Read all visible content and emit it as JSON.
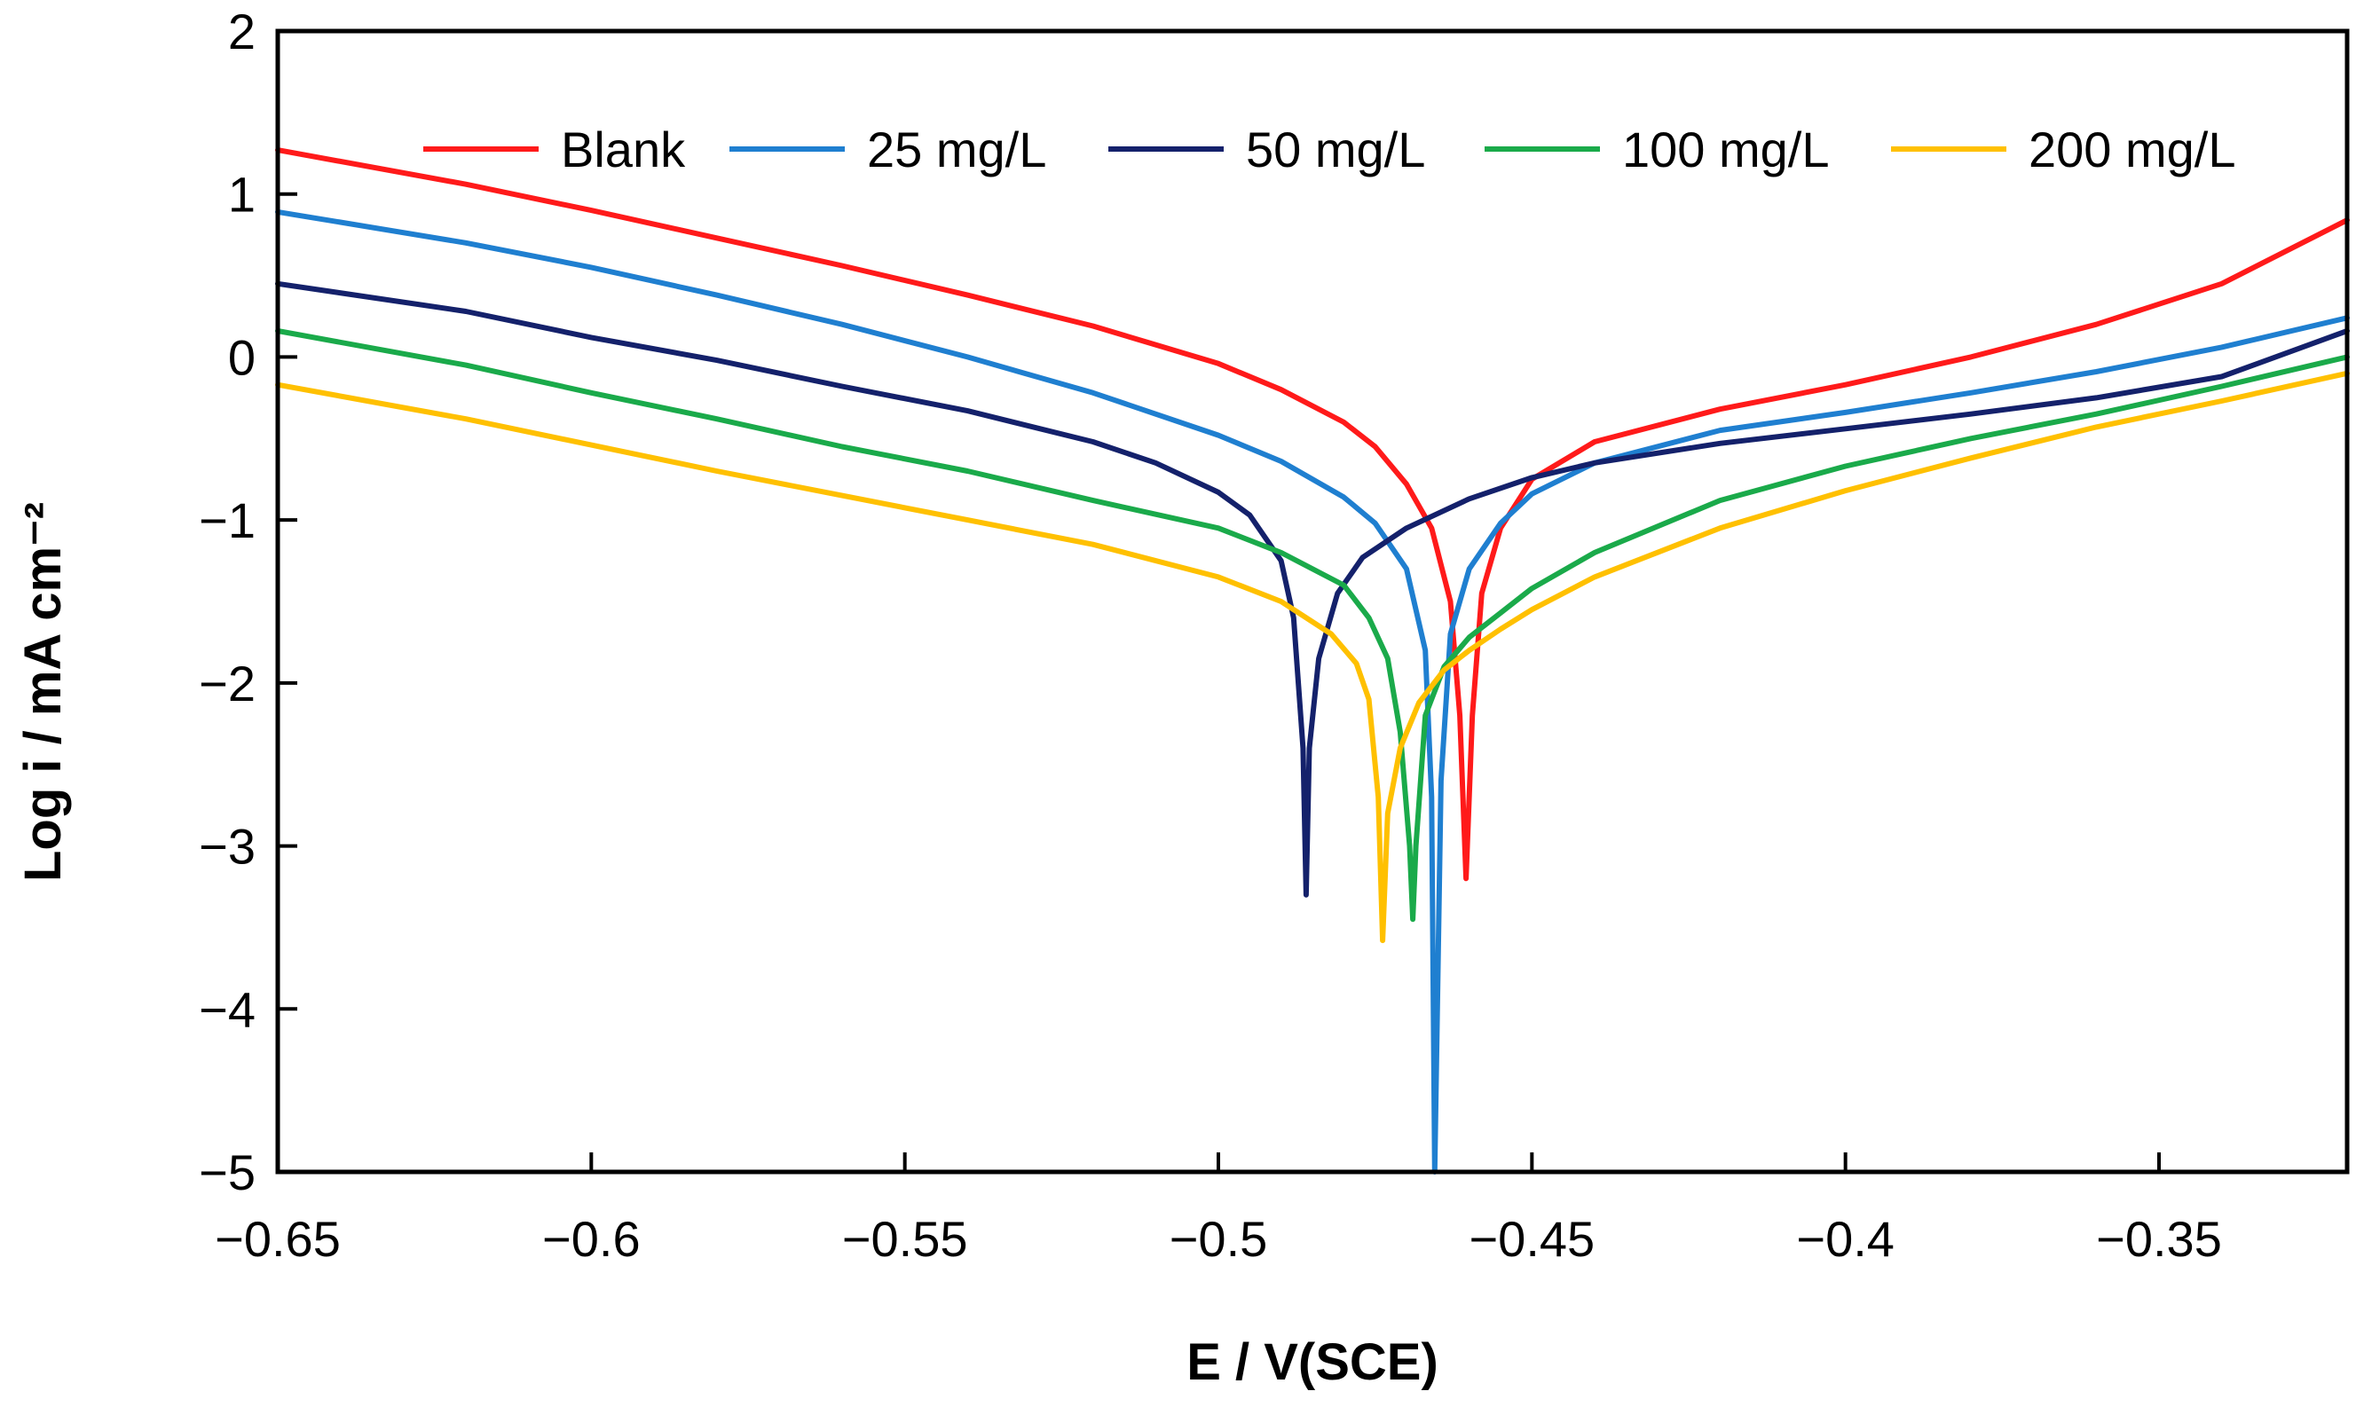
{
  "chart_data": {
    "type": "line",
    "xlabel": "E / V(SCE)",
    "ylabel": "Log i / mA cm⁻²",
    "xlim": [
      -0.65,
      -0.32
    ],
    "ylim": [
      -5,
      2
    ],
    "xticks": [
      -0.65,
      -0.6,
      -0.55,
      -0.5,
      -0.45,
      -0.4,
      -0.35
    ],
    "xtick_labels": [
      "−0.65",
      "−0.6",
      "−0.55",
      "−0.5",
      "−0.45",
      "−0.4",
      "−0.35"
    ],
    "yticks": [
      -5,
      -4,
      -3,
      -2,
      -1,
      0,
      1,
      2
    ],
    "ytick_labels": [
      "−5",
      "−4",
      "−3",
      "−2",
      "−1",
      "0",
      "1",
      "2"
    ],
    "grid": false,
    "legend_position": "top",
    "series": [
      {
        "name": "Blank",
        "color": "#ff1a1a",
        "points": [
          [
            -0.65,
            1.27
          ],
          [
            -0.62,
            1.06
          ],
          [
            -0.6,
            0.9
          ],
          [
            -0.58,
            0.73
          ],
          [
            -0.56,
            0.56
          ],
          [
            -0.54,
            0.38
          ],
          [
            -0.52,
            0.19
          ],
          [
            -0.5,
            -0.04
          ],
          [
            -0.49,
            -0.2
          ],
          [
            -0.48,
            -0.4
          ],
          [
            -0.475,
            -0.55
          ],
          [
            -0.47,
            -0.78
          ],
          [
            -0.466,
            -1.05
          ],
          [
            -0.463,
            -1.5
          ],
          [
            -0.4615,
            -2.2
          ],
          [
            -0.4605,
            -3.2
          ],
          [
            -0.4595,
            -2.2
          ],
          [
            -0.458,
            -1.45
          ],
          [
            -0.455,
            -1.05
          ],
          [
            -0.45,
            -0.75
          ],
          [
            -0.44,
            -0.52
          ],
          [
            -0.42,
            -0.32
          ],
          [
            -0.4,
            -0.17
          ],
          [
            -0.38,
            0.0
          ],
          [
            -0.36,
            0.2
          ],
          [
            -0.34,
            0.45
          ],
          [
            -0.32,
            0.84
          ]
        ]
      },
      {
        "name": "25 mg/L",
        "color": "#1f7fd0",
        "points": [
          [
            -0.65,
            0.89
          ],
          [
            -0.62,
            0.7
          ],
          [
            -0.6,
            0.55
          ],
          [
            -0.58,
            0.38
          ],
          [
            -0.56,
            0.2
          ],
          [
            -0.54,
            0.0
          ],
          [
            -0.52,
            -0.22
          ],
          [
            -0.5,
            -0.48
          ],
          [
            -0.49,
            -0.64
          ],
          [
            -0.48,
            -0.86
          ],
          [
            -0.475,
            -1.02
          ],
          [
            -0.47,
            -1.3
          ],
          [
            -0.467,
            -1.8
          ],
          [
            -0.466,
            -2.7
          ],
          [
            -0.4655,
            -5.0
          ],
          [
            -0.4645,
            -2.6
          ],
          [
            -0.463,
            -1.7
          ],
          [
            -0.46,
            -1.3
          ],
          [
            -0.455,
            -1.02
          ],
          [
            -0.45,
            -0.84
          ],
          [
            -0.44,
            -0.65
          ],
          [
            -0.42,
            -0.45
          ],
          [
            -0.4,
            -0.34
          ],
          [
            -0.38,
            -0.22
          ],
          [
            -0.36,
            -0.09
          ],
          [
            -0.34,
            0.06
          ],
          [
            -0.32,
            0.24
          ]
        ]
      },
      {
        "name": "50 mg/L",
        "color": "#14216b",
        "points": [
          [
            -0.65,
            0.45
          ],
          [
            -0.62,
            0.28
          ],
          [
            -0.6,
            0.12
          ],
          [
            -0.58,
            -0.02
          ],
          [
            -0.56,
            -0.18
          ],
          [
            -0.54,
            -0.33
          ],
          [
            -0.52,
            -0.52
          ],
          [
            -0.51,
            -0.65
          ],
          [
            -0.5,
            -0.83
          ],
          [
            -0.495,
            -0.97
          ],
          [
            -0.49,
            -1.25
          ],
          [
            -0.488,
            -1.6
          ],
          [
            -0.4865,
            -2.4
          ],
          [
            -0.486,
            -3.3
          ],
          [
            -0.4855,
            -2.4
          ],
          [
            -0.484,
            -1.85
          ],
          [
            -0.481,
            -1.45
          ],
          [
            -0.477,
            -1.23
          ],
          [
            -0.47,
            -1.05
          ],
          [
            -0.46,
            -0.87
          ],
          [
            -0.45,
            -0.74
          ],
          [
            -0.44,
            -0.65
          ],
          [
            -0.42,
            -0.53
          ],
          [
            -0.4,
            -0.44
          ],
          [
            -0.38,
            -0.35
          ],
          [
            -0.36,
            -0.25
          ],
          [
            -0.34,
            -0.12
          ],
          [
            -0.32,
            0.16
          ]
        ]
      },
      {
        "name": "100 mg/L",
        "color": "#1aaa4a",
        "points": [
          [
            -0.65,
            0.16
          ],
          [
            -0.62,
            -0.05
          ],
          [
            -0.6,
            -0.22
          ],
          [
            -0.58,
            -0.38
          ],
          [
            -0.56,
            -0.55
          ],
          [
            -0.54,
            -0.7
          ],
          [
            -0.52,
            -0.88
          ],
          [
            -0.5,
            -1.05
          ],
          [
            -0.49,
            -1.2
          ],
          [
            -0.48,
            -1.4
          ],
          [
            -0.476,
            -1.6
          ],
          [
            -0.473,
            -1.85
          ],
          [
            -0.471,
            -2.3
          ],
          [
            -0.4695,
            -3.0
          ],
          [
            -0.469,
            -3.45
          ],
          [
            -0.4685,
            -3.0
          ],
          [
            -0.467,
            -2.2
          ],
          [
            -0.464,
            -1.9
          ],
          [
            -0.46,
            -1.72
          ],
          [
            -0.455,
            -1.57
          ],
          [
            -0.45,
            -1.42
          ],
          [
            -0.44,
            -1.2
          ],
          [
            -0.42,
            -0.88
          ],
          [
            -0.4,
            -0.67
          ],
          [
            -0.38,
            -0.5
          ],
          [
            -0.36,
            -0.35
          ],
          [
            -0.34,
            -0.18
          ],
          [
            -0.32,
            0.0
          ]
        ]
      },
      {
        "name": "200 mg/L",
        "color": "#ffc000",
        "points": [
          [
            -0.65,
            -0.17
          ],
          [
            -0.62,
            -0.38
          ],
          [
            -0.6,
            -0.54
          ],
          [
            -0.58,
            -0.7
          ],
          [
            -0.56,
            -0.85
          ],
          [
            -0.54,
            -1.0
          ],
          [
            -0.52,
            -1.15
          ],
          [
            -0.5,
            -1.35
          ],
          [
            -0.49,
            -1.5
          ],
          [
            -0.482,
            -1.7
          ],
          [
            -0.478,
            -1.88
          ],
          [
            -0.476,
            -2.1
          ],
          [
            -0.4745,
            -2.7
          ],
          [
            -0.4738,
            -3.58
          ],
          [
            -0.473,
            -2.8
          ],
          [
            -0.471,
            -2.4
          ],
          [
            -0.468,
            -2.12
          ],
          [
            -0.464,
            -1.92
          ],
          [
            -0.46,
            -1.8
          ],
          [
            -0.455,
            -1.67
          ],
          [
            -0.45,
            -1.55
          ],
          [
            -0.44,
            -1.35
          ],
          [
            -0.42,
            -1.05
          ],
          [
            -0.4,
            -0.82
          ],
          [
            -0.38,
            -0.62
          ],
          [
            -0.36,
            -0.43
          ],
          [
            -0.34,
            -0.27
          ],
          [
            -0.32,
            -0.1
          ]
        ]
      }
    ]
  }
}
